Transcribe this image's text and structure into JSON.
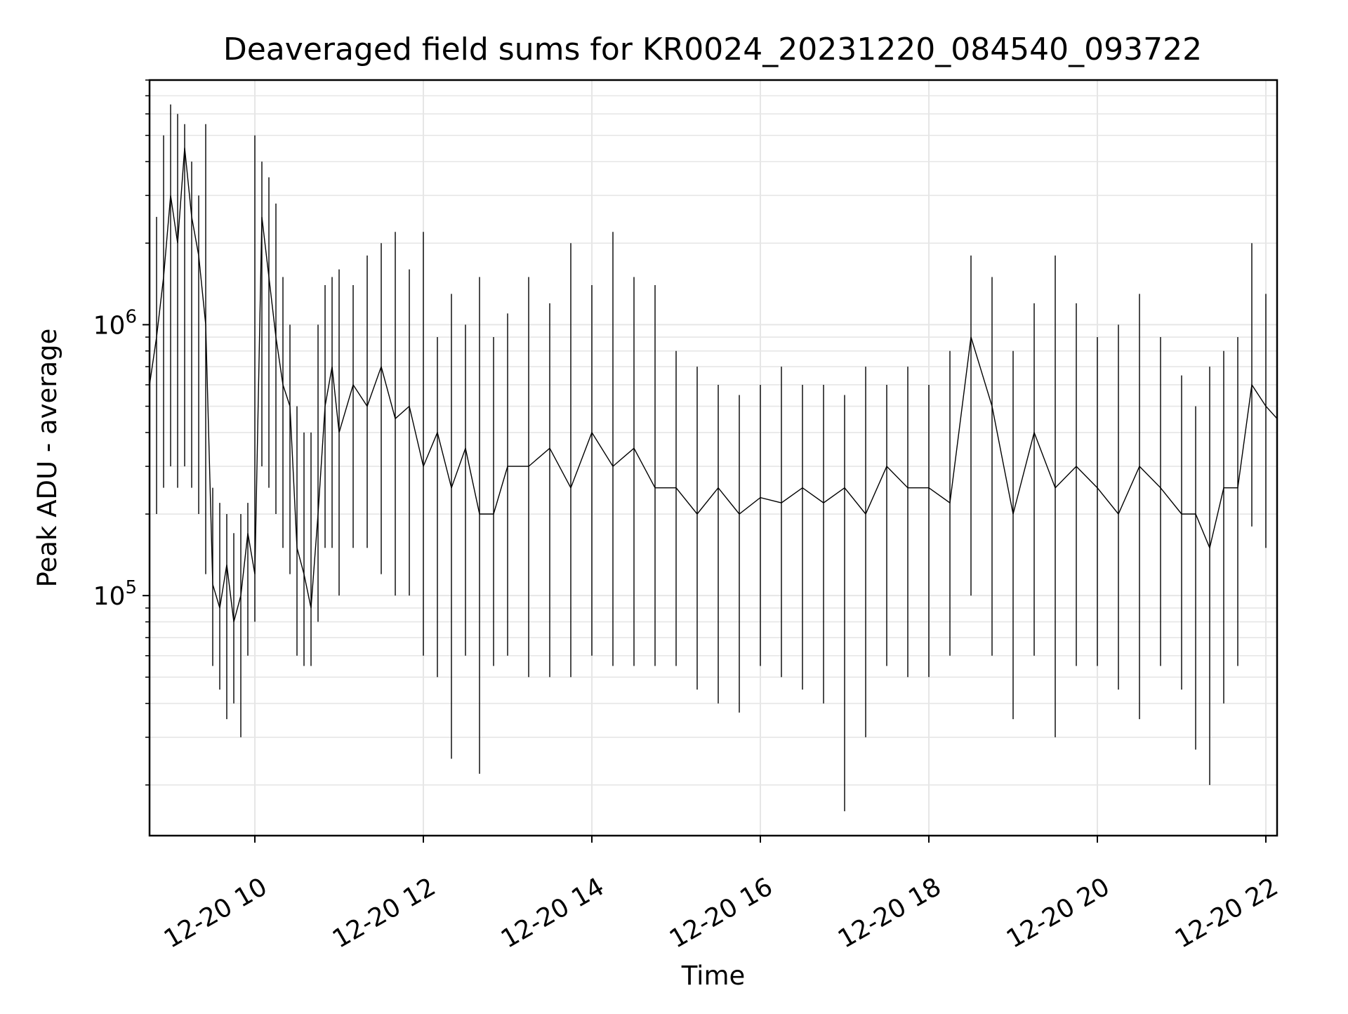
{
  "chart_data": {
    "type": "line",
    "title": "Deaveraged field sums for KR0024_20231220_084540_093722",
    "xlabel": "Time",
    "ylabel": "Peak ADU - average",
    "yscale": "log",
    "xlim": [
      "2023-12-20 08:45",
      "2023-12-20 22:08"
    ],
    "ylim": [
      13000,
      8000000
    ],
    "grid": true,
    "line_color": "#000000",
    "grid_color": "#e6e6e6",
    "x_tick_labels": [
      "12-20 10",
      "12-20 12",
      "12-20 14",
      "12-20 16",
      "12-20 18",
      "12-20 20",
      "12-20 22"
    ],
    "x_tick_values": [
      "2023-12-20 10:00",
      "2023-12-20 12:00",
      "2023-12-20 14:00",
      "2023-12-20 16:00",
      "2023-12-20 18:00",
      "2023-12-20 20:00",
      "2023-12-20 22:00"
    ],
    "y_major_ticks": [
      {
        "value": 100000,
        "base": "10",
        "exp": "5"
      },
      {
        "value": 1000000,
        "base": "10",
        "exp": "6"
      }
    ],
    "series": [
      {
        "x": [
          "2023-12-20 08:45",
          "2023-12-20 08:50",
          "2023-12-20 08:55",
          "2023-12-20 09:00",
          "2023-12-20 09:05",
          "2023-12-20 09:10",
          "2023-12-20 09:15",
          "2023-12-20 09:20",
          "2023-12-20 09:25",
          "2023-12-20 09:30",
          "2023-12-20 09:35",
          "2023-12-20 09:40",
          "2023-12-20 09:45",
          "2023-12-20 09:50",
          "2023-12-20 09:55",
          "2023-12-20 10:00",
          "2023-12-20 10:05",
          "2023-12-20 10:10",
          "2023-12-20 10:15",
          "2023-12-20 10:20",
          "2023-12-20 10:25",
          "2023-12-20 10:30",
          "2023-12-20 10:35",
          "2023-12-20 10:40",
          "2023-12-20 10:45",
          "2023-12-20 10:50",
          "2023-12-20 10:55",
          "2023-12-20 11:00",
          "2023-12-20 11:10",
          "2023-12-20 11:20",
          "2023-12-20 11:30",
          "2023-12-20 11:40",
          "2023-12-20 11:50",
          "2023-12-20 12:00",
          "2023-12-20 12:10",
          "2023-12-20 12:20",
          "2023-12-20 12:30",
          "2023-12-20 12:40",
          "2023-12-20 12:50",
          "2023-12-20 13:00",
          "2023-12-20 13:15",
          "2023-12-20 13:30",
          "2023-12-20 13:45",
          "2023-12-20 14:00",
          "2023-12-20 14:15",
          "2023-12-20 14:30",
          "2023-12-20 14:45",
          "2023-12-20 15:00",
          "2023-12-20 15:15",
          "2023-12-20 15:30",
          "2023-12-20 15:45",
          "2023-12-20 16:00",
          "2023-12-20 16:15",
          "2023-12-20 16:30",
          "2023-12-20 16:45",
          "2023-12-20 17:00",
          "2023-12-20 17:15",
          "2023-12-20 17:30",
          "2023-12-20 17:45",
          "2023-12-20 18:00",
          "2023-12-20 18:15",
          "2023-12-20 18:30",
          "2023-12-20 18:45",
          "2023-12-20 19:00",
          "2023-12-20 19:15",
          "2023-12-20 19:30",
          "2023-12-20 19:45",
          "2023-12-20 20:00",
          "2023-12-20 20:15",
          "2023-12-20 20:30",
          "2023-12-20 20:45",
          "2023-12-20 21:00",
          "2023-12-20 21:10",
          "2023-12-20 21:20",
          "2023-12-20 21:30",
          "2023-12-20 21:40",
          "2023-12-20 21:50",
          "2023-12-20 22:00",
          "2023-12-20 22:08"
        ],
        "y": [
          600000,
          900000,
          1500000,
          3000000,
          2000000,
          4500000,
          2500000,
          1800000,
          1000000,
          110000,
          90000,
          130000,
          80000,
          100000,
          170000,
          120000,
          2500000,
          1500000,
          900000,
          600000,
          500000,
          150000,
          120000,
          90000,
          200000,
          500000,
          700000,
          400000,
          600000,
          500000,
          700000,
          450000,
          500000,
          300000,
          400000,
          250000,
          350000,
          200000,
          200000,
          300000,
          300000,
          350000,
          250000,
          400000,
          300000,
          350000,
          250000,
          250000,
          200000,
          250000,
          200000,
          230000,
          220000,
          250000,
          220000,
          250000,
          200000,
          300000,
          250000,
          250000,
          220000,
          900000,
          500000,
          200000,
          400000,
          250000,
          300000,
          250000,
          200000,
          300000,
          250000,
          200000,
          200000,
          150000,
          250000,
          250000,
          600000,
          500000,
          450000
        ],
        "y_min": [
          180000,
          200000,
          250000,
          300000,
          250000,
          300000,
          250000,
          200000,
          120000,
          55000,
          45000,
          35000,
          40000,
          30000,
          60000,
          80000,
          300000,
          250000,
          200000,
          150000,
          120000,
          60000,
          55000,
          55000,
          80000,
          150000,
          150000,
          100000,
          150000,
          150000,
          120000,
          100000,
          100000,
          60000,
          50000,
          25000,
          60000,
          22000,
          55000,
          60000,
          50000,
          50000,
          50000,
          60000,
          55000,
          55000,
          55000,
          55000,
          45000,
          40000,
          37000,
          55000,
          50000,
          45000,
          40000,
          16000,
          30000,
          55000,
          50000,
          50000,
          60000,
          100000,
          60000,
          35000,
          60000,
          30000,
          55000,
          55000,
          45000,
          35000,
          55000,
          45000,
          27000,
          20000,
          40000,
          55000,
          180000,
          150000,
          150000
        ],
        "y_max": [
          1800000,
          2500000,
          5000000,
          6500000,
          6000000,
          5500000,
          4000000,
          3000000,
          5500000,
          250000,
          220000,
          200000,
          170000,
          200000,
          220000,
          5000000,
          4000000,
          3500000,
          2800000,
          1500000,
          1000000,
          500000,
          400000,
          400000,
          1000000,
          1400000,
          1500000,
          1600000,
          1400000,
          1800000,
          2000000,
          2200000,
          1600000,
          2200000,
          900000,
          1300000,
          1000000,
          1500000,
          900000,
          1100000,
          1500000,
          1200000,
          2000000,
          1400000,
          2200000,
          1500000,
          1400000,
          800000,
          700000,
          600000,
          550000,
          600000,
          700000,
          600000,
          600000,
          550000,
          700000,
          600000,
          700000,
          600000,
          800000,
          1800000,
          1500000,
          800000,
          1200000,
          1800000,
          1200000,
          900000,
          1000000,
          1300000,
          900000,
          650000,
          500000,
          700000,
          800000,
          900000,
          2000000,
          1300000,
          1200000
        ]
      }
    ]
  }
}
